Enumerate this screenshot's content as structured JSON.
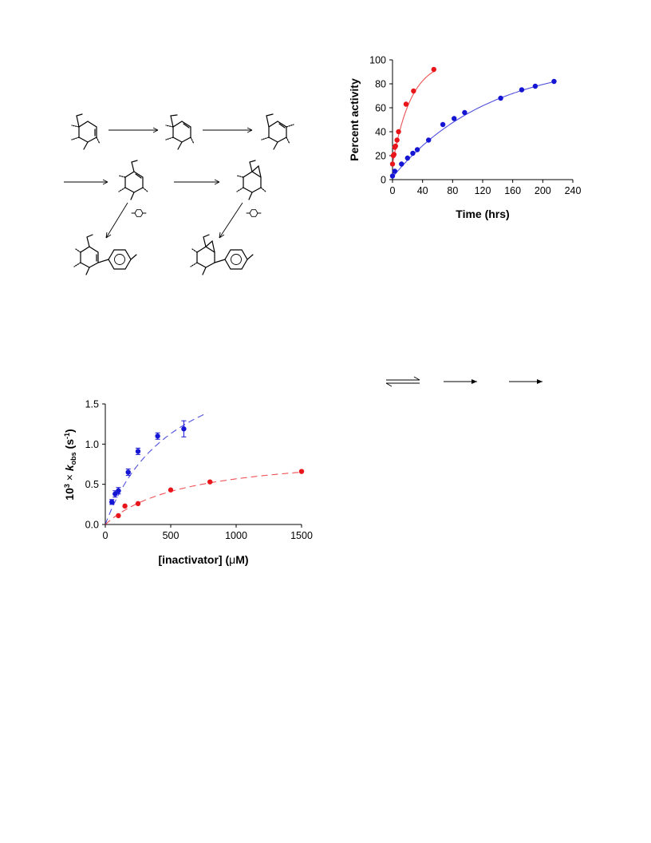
{
  "chart_data": [
    {
      "type": "scatter",
      "xlabel": "Time (hrs)",
      "ylabel": "Percent activity",
      "xlim": [
        0,
        240
      ],
      "ylim": [
        0,
        100
      ],
      "xticks": [
        0,
        40,
        80,
        120,
        160,
        200,
        240
      ],
      "yticks": [
        0,
        20,
        40,
        60,
        80,
        100
      ],
      "grid": false,
      "series": [
        {
          "color": "#e8161b",
          "fit": "line",
          "x": [
            0,
            1,
            2,
            3,
            4,
            6,
            8,
            18,
            28,
            55
          ],
          "y": [
            13,
            20,
            21,
            27,
            28,
            33,
            40,
            63,
            74,
            92
          ]
        },
        {
          "color": "#1515d4",
          "fit": "line",
          "x": [
            0,
            3,
            12,
            20,
            27,
            33,
            48,
            67,
            82,
            96,
            144,
            172,
            190,
            215
          ],
          "y": [
            3,
            7,
            13,
            18,
            22,
            25,
            33,
            46,
            51,
            56,
            68,
            75,
            78,
            82
          ]
        }
      ]
    },
    {
      "type": "scatter",
      "xlabel": "[inactivator] (",
      "xlabel_symbol": "μ",
      "xlabel_unit": "M)",
      "ylabel_prefix": "10",
      "ylabel_exp": "3",
      "ylabel_times": " × ",
      "ylabel_k": "k",
      "ylabel_sub": "obs",
      "ylabel_unit": " (s",
      "ylabel_unit_exp": "-1",
      "ylabel_close": ")",
      "xlim": [
        0,
        1500
      ],
      "ylim": [
        0,
        1.5
      ],
      "xticks": [
        0,
        500,
        1000,
        1500
      ],
      "yticks": [
        0.0,
        0.5,
        1.0,
        1.5
      ],
      "ytick_labels": [
        "0.0",
        "0.5",
        "1.0",
        "1.5"
      ],
      "grid": false,
      "series": [
        {
          "color": "#1515d4",
          "marker": "square",
          "fit": "dashed",
          "fit_x_max": 780,
          "x": [
            50,
            75,
            100,
            175,
            250,
            400,
            600
          ],
          "y": [
            0.28,
            0.38,
            0.42,
            0.65,
            0.91,
            1.1,
            1.19
          ],
          "err": [
            0.03,
            0.04,
            0.04,
            0.04,
            0.04,
            0.04,
            0.1
          ]
        },
        {
          "color": "#e8161b",
          "marker": "circle",
          "fit": "dashed",
          "fit_x_max": 1500,
          "x": [
            100,
            150,
            250,
            500,
            800,
            1500
          ],
          "y": [
            0.11,
            0.23,
            0.26,
            0.43,
            0.53,
            0.66
          ],
          "err": [
            0,
            0,
            0,
            0,
            0,
            0
          ]
        }
      ]
    }
  ],
  "scheme": {
    "structure_icons": [
      "cyclohexene-ring",
      "cyclohexene-ring",
      "cyclohexene-ring",
      "cyclohexene-ring",
      "cyclopropane-fused-ring",
      "benzene-ring",
      "benzene-ring",
      "aryl-cyclohexene-product",
      "aryl-bicyclic-product"
    ]
  }
}
